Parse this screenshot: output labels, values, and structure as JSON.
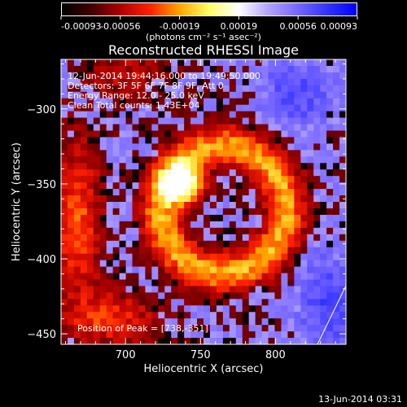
{
  "colorbar": {
    "tick_labels": [
      "-0.00093",
      "-0.00056",
      "-0.00019",
      "0.00019",
      "0.00056",
      "0.00093"
    ],
    "unit_label": "(photons cm⁻² s⁻¹ asec⁻²)",
    "range": [
      -0.00093,
      0.00093
    ]
  },
  "chart_data": {
    "type": "heatmap",
    "title": "Reconstructed RHESSI Image",
    "xlabel": "Heliocentric X (arcsec)",
    "ylabel": "Heliocentric Y (arcsec)",
    "xlim": [
      657,
      847
    ],
    "ylim": [
      -457,
      -267
    ],
    "x_ticks": [
      700,
      750,
      800
    ],
    "y_ticks": [
      -300,
      -350,
      -400,
      -450
    ],
    "annotations": [
      "12-Jun-2014 19:44:16.000 to 19:49:50.000",
      "Detectors: 3F 5F 6F 7F 8F 9F, Att 0",
      "Energy Range: 12.0 - 25.0 keV",
      "Clean     Total counts: 1.43E+04"
    ],
    "peak_label": "Position of Peak = [738,-351]",
    "peak": [
      738,
      -351
    ],
    "colormap": [
      "#0000ff",
      "#3333ff",
      "#7766ff",
      "#b3a3ff",
      "#ffffff",
      "#ffff66",
      "#ffa500",
      "#ff2200",
      "#b00000",
      "#400000",
      "#000000"
    ]
  },
  "footer": {
    "date": "13-Jun-2014 03:31"
  }
}
